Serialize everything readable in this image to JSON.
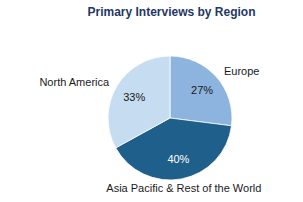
{
  "chart_data": {
    "type": "pie",
    "title": "Primary Interviews by Region",
    "categories": [
      "Europe",
      "Asia Pacific & Rest of the World",
      "North America"
    ],
    "values": [
      27,
      40,
      33
    ],
    "value_labels": [
      "27%",
      "40%",
      "33%"
    ],
    "colors": [
      "#8db4de",
      "#1f5f8b",
      "#c6dcf1"
    ],
    "data_labels": true
  }
}
